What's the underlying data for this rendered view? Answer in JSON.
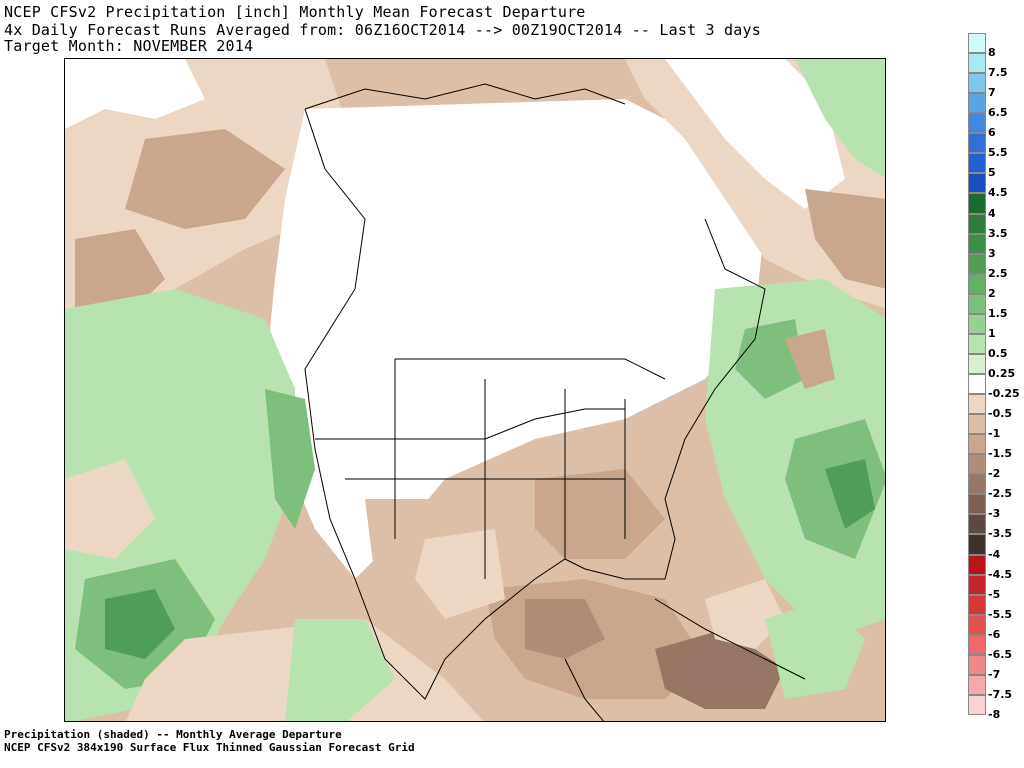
{
  "title": {
    "line1": "NCEP CFSv2 Precipitation [inch] Monthly Mean Forecast Departure",
    "line2": "4x Daily Forecast Runs Averaged from: 06Z16OCT2014 --> 00Z19OCT2014 -- Last 3 days",
    "line3": "Target Month: NOVEMBER 2014"
  },
  "footer": {
    "line1": "Precipitation (shaded) -- Monthly Average Departure",
    "line2": "NCEP CFSv2 384x190 Surface Flux Thinned Gaussian Forecast Grid"
  },
  "legend": {
    "bins": [
      {
        "label": "8",
        "color": "#d2fafa"
      },
      {
        "label": "7.5",
        "color": "#a8eaf2"
      },
      {
        "label": "7",
        "color": "#7dc6ee"
      },
      {
        "label": "6.5",
        "color": "#5aa5e6"
      },
      {
        "label": "6",
        "color": "#4189e0"
      },
      {
        "label": "5.5",
        "color": "#2f6fd8"
      },
      {
        "label": "5",
        "color": "#2060d0"
      },
      {
        "label": "4.5",
        "color": "#1850c4"
      },
      {
        "label": "4",
        "color": "#1c6a2e"
      },
      {
        "label": "3.5",
        "color": "#2f7d3c"
      },
      {
        "label": "3",
        "color": "#3e8e48"
      },
      {
        "label": "2.5",
        "color": "#4f9e56"
      },
      {
        "label": "2",
        "color": "#62b066"
      },
      {
        "label": "1.5",
        "color": "#7cc07c"
      },
      {
        "label": "1",
        "color": "#98d094"
      },
      {
        "label": "0.5",
        "color": "#b8e2b0"
      },
      {
        "label": "0.25",
        "color": "#d8f0d0"
      },
      {
        "label": "-0.25",
        "color": "#ffffff"
      },
      {
        "label": "-0.5",
        "color": "#ecd6c4"
      },
      {
        "label": "-1",
        "color": "#dcbfa8"
      },
      {
        "label": "-1.5",
        "color": "#c9a68e"
      },
      {
        "label": "-2",
        "color": "#b08d78"
      },
      {
        "label": "-2.5",
        "color": "#967766"
      },
      {
        "label": "-3",
        "color": "#7b6052"
      },
      {
        "label": "-3.5",
        "color": "#5e493f"
      },
      {
        "label": "-4",
        "color": "#3e302a"
      },
      {
        "label": "-4.5",
        "color": "#b8141e"
      },
      {
        "label": "-5",
        "color": "#c8242a"
      },
      {
        "label": "-5.5",
        "color": "#d53838"
      },
      {
        "label": "-6",
        "color": "#e25050"
      },
      {
        "label": "-6.5",
        "color": "#ea6a6a"
      },
      {
        "label": "-7",
        "color": "#f08888"
      },
      {
        "label": "-7.5",
        "color": "#f5a8a8"
      },
      {
        "label": "-8",
        "color": "#fbd0d0"
      }
    ]
  }
}
